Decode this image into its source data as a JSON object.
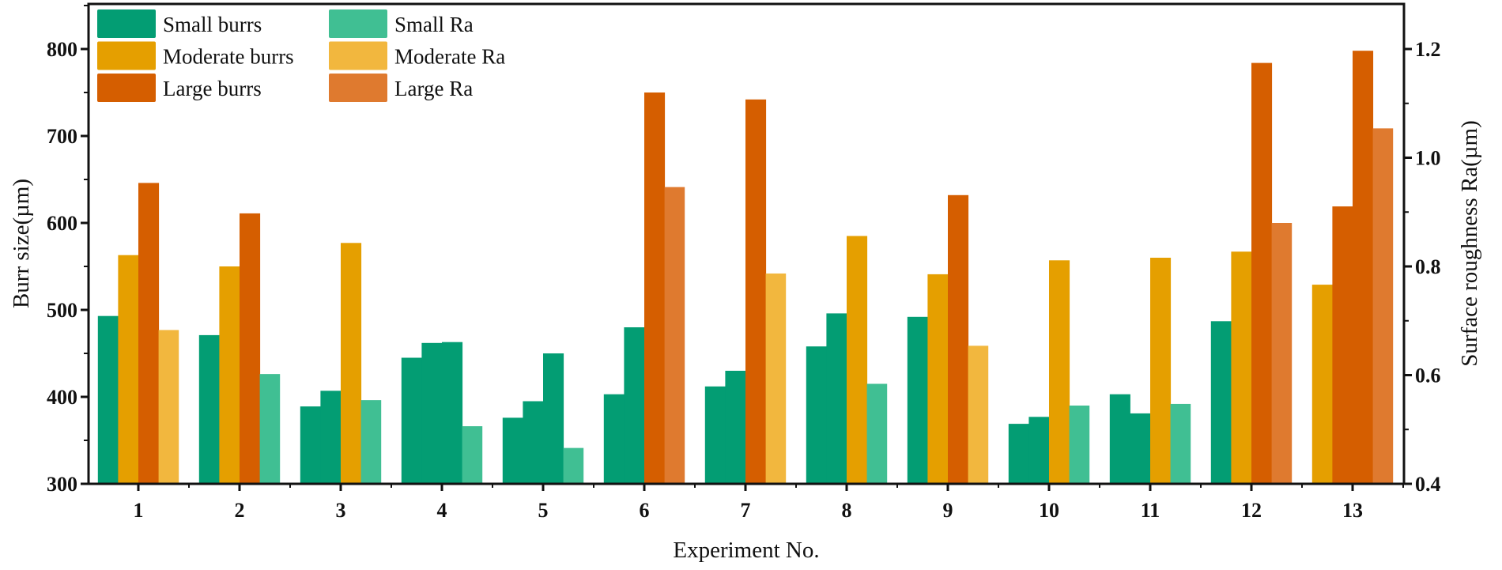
{
  "chart_data": {
    "type": "bar",
    "xlabel": "Experiment No.",
    "ylabel": "Burr size(µm)",
    "y2label": "Surface roughness Ra(µm)",
    "ylim": [
      300,
      850
    ],
    "y2lim": [
      0.4,
      1.28
    ],
    "yticks": [
      "300",
      "400",
      "500",
      "600",
      "700",
      "800"
    ],
    "y2ticks": [
      "0.4",
      "0.6",
      "0.8",
      "1.0",
      "1.2"
    ],
    "grid": false,
    "legend_position": "top-left",
    "legend": [
      {
        "key": "small_burrs",
        "label": "Small burrs",
        "color": "#039d73"
      },
      {
        "key": "moderate_burrs",
        "label": "Moderate burrs",
        "color": "#e59f00"
      },
      {
        "key": "large_burrs",
        "label": "Large burrs",
        "color": "#d55e00"
      },
      {
        "key": "small_ra",
        "label": "Small Ra",
        "color": "#40bf93"
      },
      {
        "key": "moderate_ra",
        "label": "Moderate Ra",
        "color": "#f2b73e"
      },
      {
        "key": "large_ra",
        "label": "Large Ra",
        "color": "#df7a2f"
      }
    ],
    "experiments": [
      {
        "no": "1",
        "burrs": [
          {
            "value": 493,
            "class": "small"
          },
          {
            "value": 563,
            "class": "moderate"
          },
          {
            "value": 646,
            "class": "large"
          }
        ],
        "ra": {
          "value": 0.683,
          "class": "moderate"
        }
      },
      {
        "no": "2",
        "burrs": [
          {
            "value": 471,
            "class": "small"
          },
          {
            "value": 550,
            "class": "moderate"
          },
          {
            "value": 611,
            "class": "large"
          }
        ],
        "ra": {
          "value": 0.602,
          "class": "small"
        }
      },
      {
        "no": "3",
        "burrs": [
          {
            "value": 389,
            "class": "small"
          },
          {
            "value": 407,
            "class": "small"
          },
          {
            "value": 577,
            "class": "moderate"
          }
        ],
        "ra": {
          "value": 0.554,
          "class": "small"
        }
      },
      {
        "no": "4",
        "burrs": [
          {
            "value": 445,
            "class": "small"
          },
          {
            "value": 462,
            "class": "small"
          },
          {
            "value": 463,
            "class": "small"
          }
        ],
        "ra": {
          "value": 0.506,
          "class": "small"
        }
      },
      {
        "no": "5",
        "burrs": [
          {
            "value": 376,
            "class": "small"
          },
          {
            "value": 395,
            "class": "small"
          },
          {
            "value": 450,
            "class": "small"
          }
        ],
        "ra": {
          "value": 0.466,
          "class": "small"
        }
      },
      {
        "no": "6",
        "burrs": [
          {
            "value": 403,
            "class": "small"
          },
          {
            "value": 480,
            "class": "small"
          },
          {
            "value": 750,
            "class": "large"
          }
        ],
        "ra": {
          "value": 0.946,
          "class": "large"
        }
      },
      {
        "no": "7",
        "burrs": [
          {
            "value": 412,
            "class": "small"
          },
          {
            "value": 430,
            "class": "small"
          },
          {
            "value": 742,
            "class": "large"
          }
        ],
        "ra": {
          "value": 0.787,
          "class": "moderate"
        }
      },
      {
        "no": "8",
        "burrs": [
          {
            "value": 458,
            "class": "small"
          },
          {
            "value": 496,
            "class": "small"
          },
          {
            "value": 585,
            "class": "moderate"
          }
        ],
        "ra": {
          "value": 0.584,
          "class": "small"
        }
      },
      {
        "no": "9",
        "burrs": [
          {
            "value": 492,
            "class": "small"
          },
          {
            "value": 541,
            "class": "moderate"
          },
          {
            "value": 632,
            "class": "large"
          }
        ],
        "ra": {
          "value": 0.654,
          "class": "moderate"
        }
      },
      {
        "no": "10",
        "burrs": [
          {
            "value": 369,
            "class": "small"
          },
          {
            "value": 377,
            "class": "small"
          },
          {
            "value": 557,
            "class": "moderate"
          }
        ],
        "ra": {
          "value": 0.544,
          "class": "small"
        }
      },
      {
        "no": "11",
        "burrs": [
          {
            "value": 403,
            "class": "small"
          },
          {
            "value": 381,
            "class": "small"
          },
          {
            "value": 560,
            "class": "moderate"
          }
        ],
        "ra": {
          "value": 0.547,
          "class": "small"
        }
      },
      {
        "no": "12",
        "burrs": [
          {
            "value": 487,
            "class": "small"
          },
          {
            "value": 567,
            "class": "moderate"
          },
          {
            "value": 784,
            "class": "large"
          }
        ],
        "ra": {
          "value": 0.88,
          "class": "large"
        }
      },
      {
        "no": "13",
        "burrs": [
          {
            "value": 529,
            "class": "moderate"
          },
          {
            "value": 619,
            "class": "large"
          },
          {
            "value": 798,
            "class": "large"
          }
        ],
        "ra": {
          "value": 1.054,
          "class": "large"
        }
      }
    ]
  }
}
